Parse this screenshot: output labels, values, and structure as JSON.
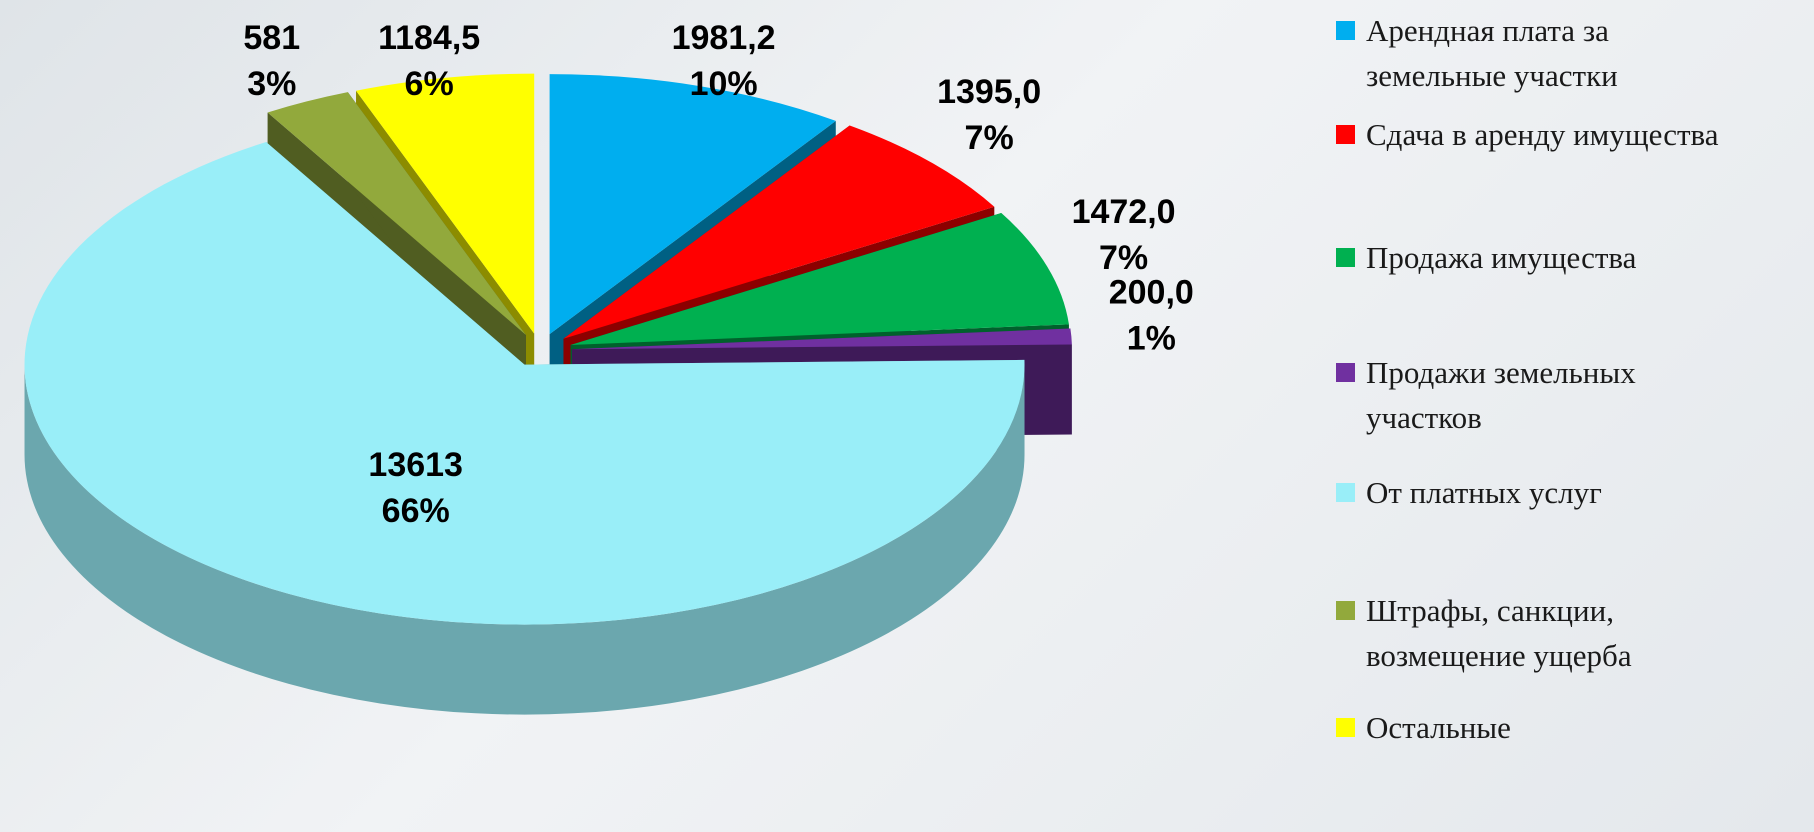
{
  "chart_data": {
    "type": "pie3d",
    "categories": [
      "Арендная плата за земельные участки",
      "Сдача в аренду имущества",
      "Продажа имущества",
      "Продажи земельных участков",
      "От платных услуг",
      "Штрафы, санкции, возмещение ущерба",
      "Остальные"
    ],
    "values": [
      1981.2,
      1395.0,
      1472.0,
      200.0,
      13613,
      581,
      1184.5
    ],
    "value_labels": [
      "1981,2",
      "1395,0",
      "1472,0",
      "200,0",
      "13613",
      "581",
      "1184,5"
    ],
    "percents": [
      10,
      7,
      7,
      1,
      66,
      3,
      6
    ],
    "percent_labels": [
      "10%",
      "7%",
      "7%",
      "1%",
      "66%",
      "3%",
      "6%"
    ],
    "colors": [
      "#00aeef",
      "#ff0000",
      "#00b050",
      "#7030a0",
      "#99eef8",
      "#92a93c",
      "#ffff00"
    ],
    "legend": "right"
  }
}
